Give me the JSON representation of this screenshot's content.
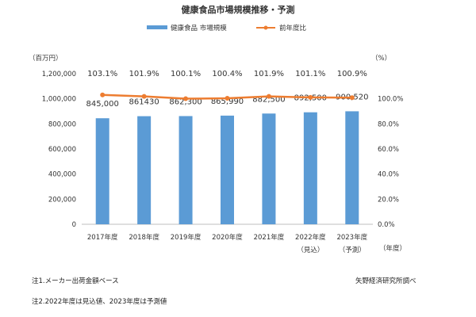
{
  "chart_data": {
    "type": "bar",
    "title": "健康食品市場規模推移・予測",
    "left_unit": "（百万円）",
    "right_unit": "（%）",
    "x_unit": "（年度）",
    "categories": [
      "2017年度",
      "2018年度",
      "2019年度",
      "2020年度",
      "2021年度",
      "2022年度",
      "2023年度"
    ],
    "category_sublabels": [
      "",
      "",
      "",
      "",
      "",
      "（見込）",
      "（予測）"
    ],
    "y_ticks": [
      "0",
      "200,000",
      "400,000",
      "600,000",
      "800,000",
      "1,000,000",
      "1,200,000"
    ],
    "ylim": [
      0,
      1200000
    ],
    "y2_ticks": [
      "0.0%",
      "20.0%",
      "40.0%",
      "60.0%",
      "80.0%",
      "100.0%"
    ],
    "y2lim": [
      0,
      120
    ],
    "series": [
      {
        "name": "健康食品 市場規模",
        "type": "bar",
        "color": "#5b9bd5",
        "values": [
          845000,
          861430,
          862300,
          865990,
          882500,
          892500,
          900520
        ],
        "labels": [
          "845,000",
          "861430",
          "862,300",
          "865,990",
          "882,500",
          "892,500",
          "900,520"
        ]
      },
      {
        "name": "前年度比",
        "type": "line",
        "axis": "right",
        "color": "#ed7d31",
        "values": [
          103.1,
          101.9,
          100.1,
          100.4,
          101.9,
          101.1,
          100.9
        ],
        "labels": [
          "103.1%",
          "101.9%",
          "100.1%",
          "100.4%",
          "101.9%",
          "101.1%",
          "100.9%"
        ]
      }
    ],
    "legend_position": "top",
    "grid": false
  },
  "notes": {
    "note1": "注1.メーカー出荷金額ベース",
    "note2": "注2.2022年度は見込値、2023年度は予測値",
    "source": "矢野経済研究所調べ"
  }
}
